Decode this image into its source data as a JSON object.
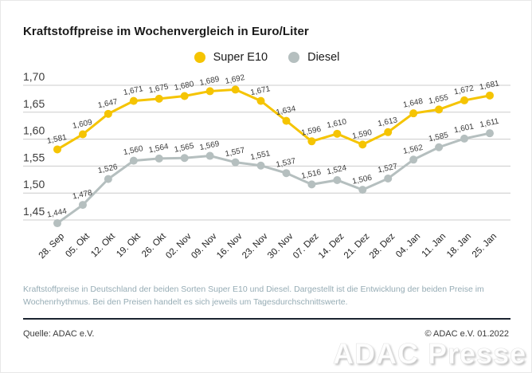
{
  "page": {
    "title": "Kraftstoffpreise im Wochenvergleich in Euro/Liter",
    "description_lines": [
      "Kraftstoffpreise in Deutschland der beiden Sorten Super E10 und Diesel. Dargestellt ist die Entwicklung der beiden Preise im",
      "Wochenrhythmus. Bei den Preisen handelt es sich jeweils um Tagesdurchschnittswerte."
    ],
    "source_label": "Quelle: ADAC e.V.",
    "copyright_label": "© ADAC e.V. 01.2022",
    "watermark": "ADAC Presse"
  },
  "colors": {
    "super_e10": "#f5c402",
    "diesel": "#b5bfbf",
    "grid": "#cccccc",
    "axis_text": "#3c3c3c",
    "data_label": "#3a3a3a",
    "tick_text": "#222222",
    "description": "#96acb5",
    "rule": "#1b2430"
  },
  "chart_data": {
    "type": "line",
    "title": "Kraftstoffpreise im Wochenvergleich in Euro/Liter",
    "ylabel": "Euro/Liter",
    "xlabel": "",
    "grid": true,
    "legend_position": "top-center",
    "data_labels": true,
    "decimal_separator": ",",
    "ylim": [
      1.425,
      1.7
    ],
    "y_ticks": [
      1.45,
      1.5,
      1.55,
      1.6,
      1.65,
      1.7
    ],
    "categories": [
      "28. Sep",
      "05. Okt",
      "12. Okt",
      "19. Okt",
      "26. Okt",
      "02. Nov",
      "09. Nov",
      "16. Nov",
      "23. Nov",
      "30. Nov",
      "07. Dez",
      "14. Dez",
      "21. Dez",
      "28. Dez",
      "04. Jan",
      "11. Jan",
      "18. Jan",
      "25. Jan"
    ],
    "series": [
      {
        "name": "Super E10",
        "color": "#f5c402",
        "values": [
          1.581,
          1.609,
          1.647,
          1.671,
          1.675,
          1.68,
          1.689,
          1.692,
          1.671,
          1.634,
          1.596,
          1.61,
          1.59,
          1.613,
          1.648,
          1.655,
          1.672,
          1.681
        ]
      },
      {
        "name": "Diesel",
        "color": "#b5bfbf",
        "values": [
          1.444,
          1.478,
          1.526,
          1.56,
          1.564,
          1.565,
          1.569,
          1.557,
          1.551,
          1.537,
          1.516,
          1.524,
          1.506,
          1.527,
          1.562,
          1.585,
          1.601,
          1.611
        ]
      }
    ]
  }
}
